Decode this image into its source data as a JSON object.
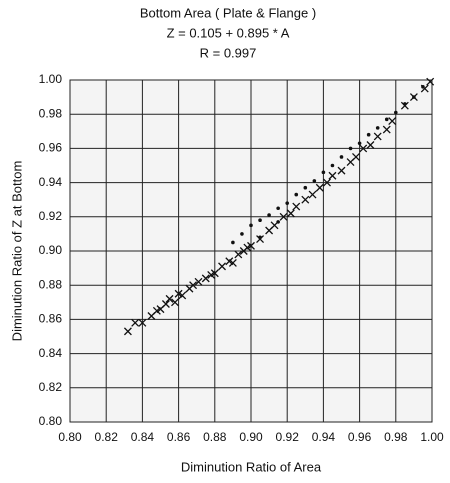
{
  "chart_data": {
    "type": "scatter",
    "title": [
      "Bottom Area ( Plate & Flange )",
      "Z = 0.105 + 0.895 * A",
      "R = 0.997"
    ],
    "x_label": "Diminution Ratio of Area",
    "y_label": "Diminution Ratio of Z at Bottom",
    "xlim": [
      0.8,
      1.0
    ],
    "ylim": [
      0.8,
      1.0
    ],
    "xticks": [
      {
        "value": 0.8,
        "label": "0.80"
      },
      {
        "value": 0.82,
        "label": "0.82"
      },
      {
        "value": 0.84,
        "label": "0.84"
      },
      {
        "value": 0.86,
        "label": "0.86"
      },
      {
        "value": 0.88,
        "label": "0.88"
      },
      {
        "value": 0.9,
        "label": "0.90"
      },
      {
        "value": 0.92,
        "label": "0.92"
      },
      {
        "value": 0.94,
        "label": "0.94"
      },
      {
        "value": 0.96,
        "label": "0.96"
      },
      {
        "value": 0.98,
        "label": "0.98"
      },
      {
        "value": 1.0,
        "label": "1.00"
      }
    ],
    "yticks": [
      {
        "value": 0.8,
        "label": "0.80"
      },
      {
        "value": 0.82,
        "label": "0.82"
      },
      {
        "value": 0.84,
        "label": "0.84"
      },
      {
        "value": 0.86,
        "label": "0.86"
      },
      {
        "value": 0.88,
        "label": "0.88"
      },
      {
        "value": 0.9,
        "label": "0.90"
      },
      {
        "value": 0.92,
        "label": "0.92"
      },
      {
        "value": 0.94,
        "label": "0.94"
      },
      {
        "value": 0.96,
        "label": "0.96"
      },
      {
        "value": 0.98,
        "label": "0.98"
      },
      {
        "value": 1.0,
        "label": "1.00"
      }
    ],
    "grid": true,
    "series": [
      {
        "marker": "x",
        "color": "#111111",
        "x": [
          0.832,
          0.836,
          0.84,
          0.845,
          0.848,
          0.85,
          0.853,
          0.855,
          0.858,
          0.86,
          0.862,
          0.866,
          0.868,
          0.871,
          0.875,
          0.878,
          0.88,
          0.884,
          0.888,
          0.89,
          0.893,
          0.896,
          0.898,
          0.9,
          0.905,
          0.91,
          0.913,
          0.918,
          0.922,
          0.925,
          0.93,
          0.934,
          0.938,
          0.942,
          0.945,
          0.95,
          0.955,
          0.958,
          0.962,
          0.966,
          0.97,
          0.975,
          0.978,
          0.985,
          0.99,
          0.996,
          0.999
        ],
        "values": [
          0.853,
          0.858,
          0.858,
          0.862,
          0.865,
          0.866,
          0.869,
          0.872,
          0.87,
          0.875,
          0.874,
          0.878,
          0.88,
          0.882,
          0.884,
          0.886,
          0.887,
          0.891,
          0.894,
          0.893,
          0.898,
          0.9,
          0.902,
          0.903,
          0.907,
          0.912,
          0.915,
          0.92,
          0.922,
          0.926,
          0.93,
          0.933,
          0.937,
          0.94,
          0.944,
          0.947,
          0.952,
          0.955,
          0.96,
          0.962,
          0.967,
          0.971,
          0.976,
          0.985,
          0.99,
          0.995,
          0.999
        ]
      },
      {
        "marker": "dot",
        "color": "#111111",
        "x": [
          0.89,
          0.895,
          0.9,
          0.905,
          0.905,
          0.91,
          0.915,
          0.915,
          0.92,
          0.925,
          0.93,
          0.935,
          0.94,
          0.945,
          0.95,
          0.955,
          0.96,
          0.965,
          0.97,
          0.975,
          0.98,
          0.985,
          0.99,
          0.995
        ],
        "values": [
          0.905,
          0.91,
          0.915,
          0.918,
          0.908,
          0.921,
          0.925,
          0.917,
          0.928,
          0.933,
          0.937,
          0.941,
          0.946,
          0.95,
          0.955,
          0.96,
          0.963,
          0.968,
          0.972,
          0.977,
          0.981,
          0.986,
          0.99,
          0.996
        ]
      }
    ]
  }
}
